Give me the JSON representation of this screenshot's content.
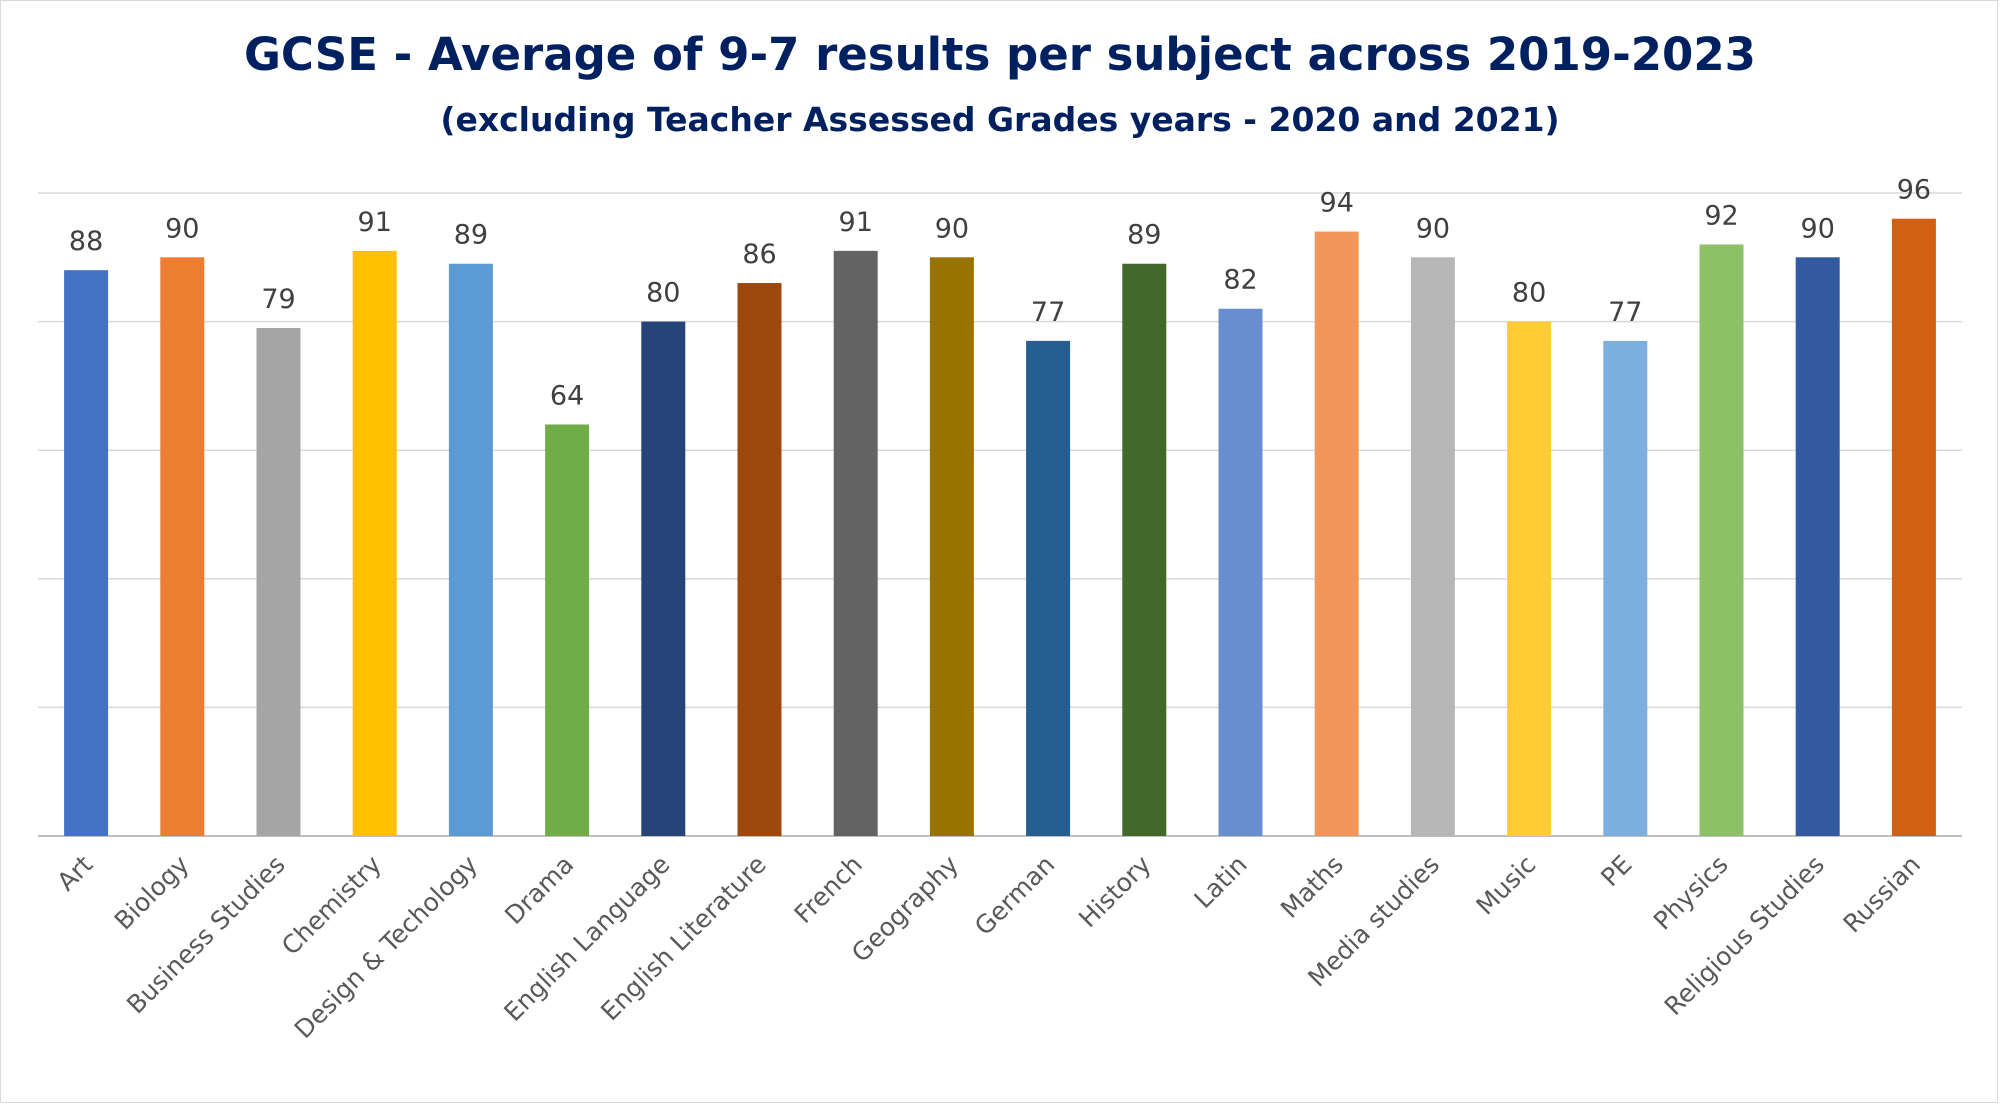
{
  "chart_data": {
    "type": "bar",
    "title": "GCSE - Average of 9-7 results per subject across 2019-2023",
    "subtitle": "(excluding Teacher Assessed Grades years - 2020 and 2021)",
    "xlabel": "",
    "ylabel": "",
    "ylim": [
      0,
      100
    ],
    "grid": true,
    "legend": "none",
    "categories": [
      "Art",
      "Biology",
      "Business Studies",
      "Chemistry",
      "Design & Techology",
      "Drama",
      "English Language",
      "English Literature",
      "French",
      "Geography",
      "German",
      "History",
      "Latin",
      "Maths",
      "Media studies",
      "Music",
      "PE",
      "Physics",
      "Religious Studies",
      "Russian"
    ],
    "values": [
      88,
      90,
      79,
      91,
      89,
      64,
      80,
      86,
      91,
      90,
      77,
      89,
      82,
      94,
      90,
      80,
      77,
      92,
      90,
      96
    ],
    "colors": [
      "#4472C4",
      "#ED7D31",
      "#A5A5A5",
      "#FFC000",
      "#5B9BD5",
      "#70AD47",
      "#264478",
      "#9E480E",
      "#636363",
      "#997300",
      "#255E91",
      "#43682B",
      "#698ED0",
      "#F1975A",
      "#B7B7B7",
      "#FFCD33",
      "#7CAFDD",
      "#8CC168",
      "#335AA1",
      "#D26012"
    ]
  }
}
